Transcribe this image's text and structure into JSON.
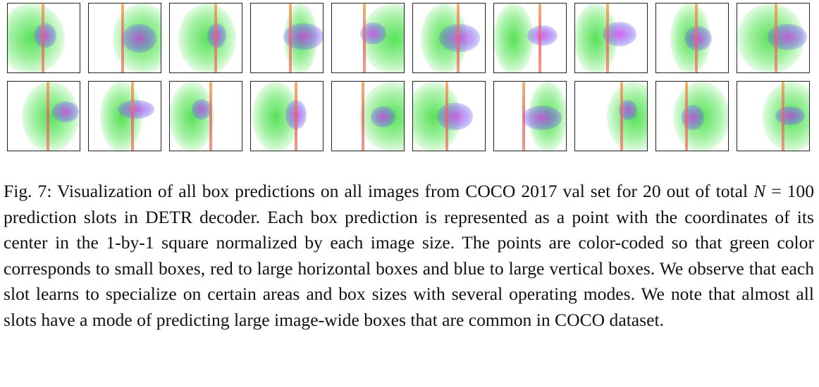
{
  "figure": {
    "panel_rows": 2,
    "panels_per_row": 10
  },
  "caption": {
    "label": "Fig. 7:",
    "text_before": "Visualization of all box predictions on all images from COCO 2017 val set for 20 out of total ",
    "math_var": "N",
    "math_rest": " = 100",
    "text_after": " prediction slots in DETR decoder. Each box prediction is represented as a point with the coordinates of its center in the 1-by-1 square normalized by each image size. The points are color-coded so that green color corresponds to small boxes, red to large horizontal boxes and blue to large vertical boxes. We observe that each slot learns to specialize on certain areas and box sizes with several operating modes. We note that almost all slots have a mode of predicting large image-wide boxes that are common in COCO dataset."
  }
}
